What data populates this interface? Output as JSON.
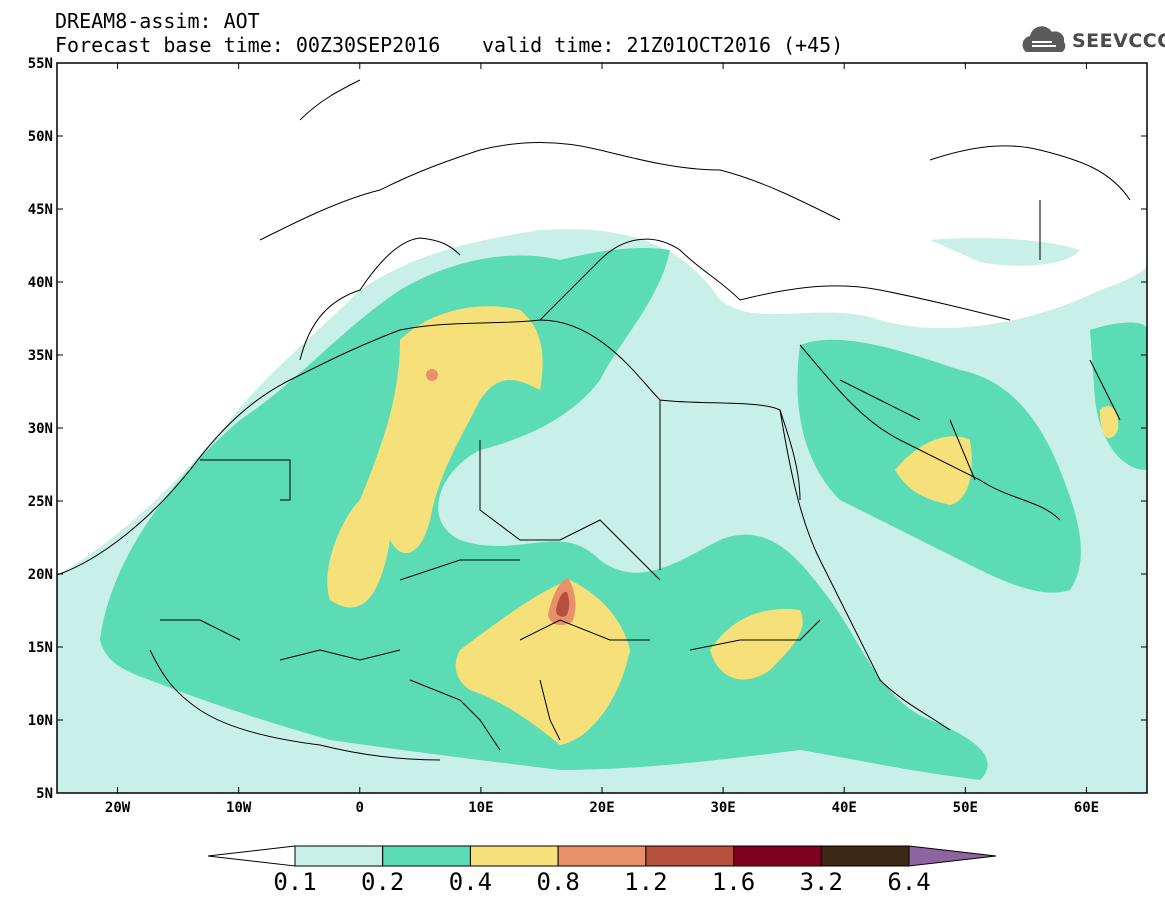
{
  "header": {
    "title": "DREAM8-assim: AOT",
    "base_time": "Forecast base time: 00Z30SEP2016",
    "valid_time": "valid time: 21Z01OCT2016 (+45)"
  },
  "logo": {
    "text": "SEEVCCC",
    "icon": "cloud-icon"
  },
  "map": {
    "lat_labels": [
      "55N",
      "50N",
      "45N",
      "40N",
      "35N",
      "30N",
      "25N",
      "20N",
      "15N",
      "10N",
      "5N"
    ],
    "lon_labels": [
      "20W",
      "10W",
      "0",
      "10E",
      "20E",
      "30E",
      "40E",
      "50E",
      "60E"
    ],
    "lon_range": [
      -25,
      65
    ],
    "lat_range": [
      5,
      55
    ]
  },
  "colorbar": {
    "labels": [
      "0.1",
      "0.2",
      "0.4",
      "0.8",
      "1.2",
      "1.6",
      "3.2",
      "6.4"
    ],
    "colors": [
      "#c8f0e8",
      "#5cdcb4",
      "#f5e07a",
      "#e8906a",
      "#b4503c",
      "#800020",
      "#3c2814",
      "#8c64a0"
    ]
  },
  "colors": {
    "level_0_1": "#c8f0e8",
    "level_0_2": "#5cdcb4",
    "level_0_4": "#f5e07a",
    "level_0_8": "#e8906a",
    "level_1_2": "#b4503c"
  }
}
